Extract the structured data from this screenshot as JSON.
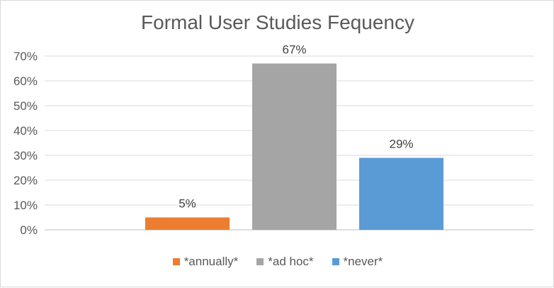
{
  "chart_data": {
    "type": "bar",
    "title": "Formal User Studies Fequency",
    "xlabel": "",
    "ylabel": "",
    "ylim": [
      0,
      70
    ],
    "yticks": [
      "0%",
      "10%",
      "20%",
      "30%",
      "40%",
      "50%",
      "60%",
      "70%"
    ],
    "grid": true,
    "legend_position": "bottom",
    "series": [
      {
        "name": "*annually*",
        "value": 5,
        "label": "5%",
        "color": "#ed7d31"
      },
      {
        "name": "*ad hoc*",
        "value": 67,
        "label": "67%",
        "color": "#a5a5a5"
      },
      {
        "name": "*never*",
        "value": 29,
        "label": "29%",
        "color": "#5b9bd5"
      }
    ]
  }
}
